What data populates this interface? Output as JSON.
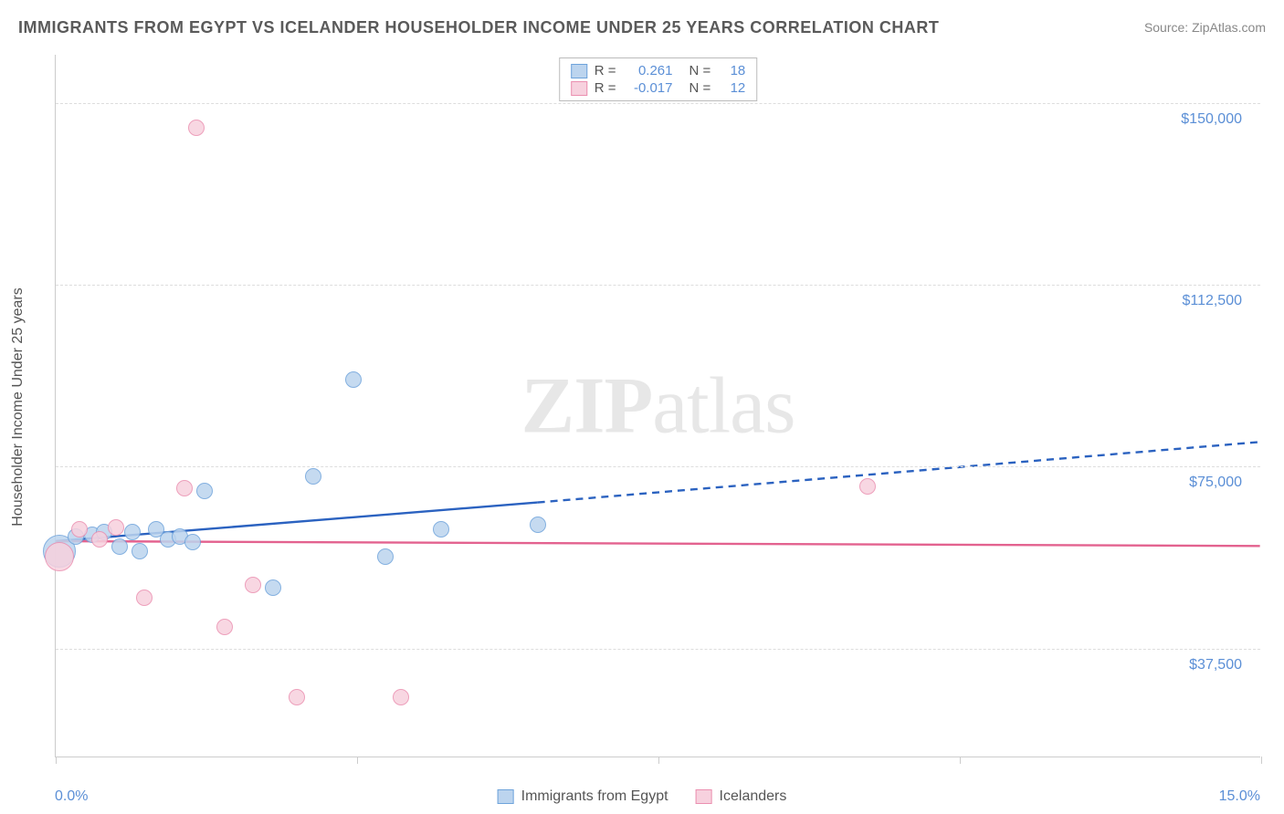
{
  "title": "IMMIGRANTS FROM EGYPT VS ICELANDER HOUSEHOLDER INCOME UNDER 25 YEARS CORRELATION CHART",
  "source": "Source: ZipAtlas.com",
  "watermark": "ZIPatlas",
  "chart": {
    "type": "scatter",
    "background_color": "#ffffff",
    "grid_color": "#dddddd",
    "axis_color": "#cccccc",
    "label_color": "#5b8fd6",
    "text_color": "#555555",
    "y_axis_title": "Householder Income Under 25 years",
    "xlim": [
      0.0,
      15.0
    ],
    "ylim": [
      15000,
      160000
    ],
    "x_ticks": [
      0.0,
      3.75,
      7.5,
      11.25,
      15.0
    ],
    "x_tick_labels_shown": {
      "left": "0.0%",
      "right": "15.0%"
    },
    "y_ticks": [
      37500,
      75000,
      112500,
      150000
    ],
    "y_tick_labels": [
      "$37,500",
      "$75,000",
      "$112,500",
      "$150,000"
    ],
    "marker_radius": 9,
    "marker_stroke_width": 1.2,
    "trend_line_width": 2.4,
    "series": [
      {
        "name": "Immigrants from Egypt",
        "fill_color": "#bcd4ee",
        "stroke_color": "#6ea3db",
        "line_color": "#2b62c0",
        "R": "0.261",
        "N": "18",
        "points": [
          {
            "x": 0.05,
            "y": 57500,
            "r": 18
          },
          {
            "x": 0.25,
            "y": 60500
          },
          {
            "x": 0.45,
            "y": 61000
          },
          {
            "x": 0.6,
            "y": 61500
          },
          {
            "x": 0.8,
            "y": 58500
          },
          {
            "x": 0.95,
            "y": 61500
          },
          {
            "x": 1.05,
            "y": 57500
          },
          {
            "x": 1.25,
            "y": 62000
          },
          {
            "x": 1.4,
            "y": 60000
          },
          {
            "x": 1.55,
            "y": 60500
          },
          {
            "x": 1.7,
            "y": 59500
          },
          {
            "x": 1.85,
            "y": 70000
          },
          {
            "x": 2.7,
            "y": 50000
          },
          {
            "x": 3.2,
            "y": 73000
          },
          {
            "x": 3.7,
            "y": 93000
          },
          {
            "x": 4.1,
            "y": 56500
          },
          {
            "x": 4.8,
            "y": 62000
          },
          {
            "x": 6.0,
            "y": 63000
          }
        ],
        "trend_solid": {
          "x1": 0.0,
          "y1": 59500,
          "x2": 6.0,
          "y2": 67500
        },
        "trend_dashed": {
          "x1": 6.0,
          "y1": 67500,
          "x2": 15.0,
          "y2": 80000
        }
      },
      {
        "name": "Icelanders",
        "fill_color": "#f7d1de",
        "stroke_color": "#eb8fb0",
        "line_color": "#e3628f",
        "R": "-0.017",
        "N": "12",
        "points": [
          {
            "x": 0.05,
            "y": 56500,
            "r": 16
          },
          {
            "x": 0.3,
            "y": 62000
          },
          {
            "x": 0.55,
            "y": 60000
          },
          {
            "x": 0.75,
            "y": 62500
          },
          {
            "x": 1.1,
            "y": 48000
          },
          {
            "x": 1.6,
            "y": 70500
          },
          {
            "x": 1.75,
            "y": 145000
          },
          {
            "x": 2.1,
            "y": 42000
          },
          {
            "x": 2.45,
            "y": 50500
          },
          {
            "x": 3.0,
            "y": 27500
          },
          {
            "x": 4.3,
            "y": 27500
          },
          {
            "x": 10.1,
            "y": 71000
          }
        ],
        "trend_solid": {
          "x1": 0.0,
          "y1": 59500,
          "x2": 15.0,
          "y2": 58500
        }
      }
    ],
    "legend_bottom": [
      {
        "label": "Immigrants from Egypt",
        "fill": "#bcd4ee",
        "stroke": "#6ea3db"
      },
      {
        "label": "Icelanders",
        "fill": "#f7d1de",
        "stroke": "#eb8fb0"
      }
    ]
  }
}
